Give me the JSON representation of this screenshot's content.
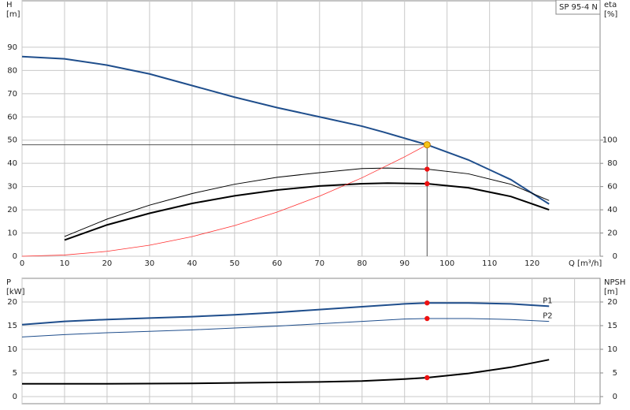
{
  "chart_data": [
    {
      "type": "line",
      "title": "SP 95-4 N",
      "ylabel": "H",
      "yunit": "[m]",
      "y2label": "eta",
      "y2unit": "[%]",
      "xlabel": "Q [m³/h]",
      "xlim": [
        0,
        136
      ],
      "xticks": [
        0,
        10,
        20,
        30,
        40,
        50,
        60,
        70,
        80,
        90,
        100,
        110,
        120
      ],
      "ylim": [
        0,
        110
      ],
      "yticks": [
        0,
        10,
        20,
        30,
        40,
        50,
        60,
        70,
        80,
        90
      ],
      "y2lim": [
        0,
        220
      ],
      "y2ticks": [
        0,
        20,
        40,
        60,
        80,
        100
      ],
      "grid": true,
      "series": [
        {
          "color": "#1f4e8c",
          "width": 2,
          "x": [
            0,
            10,
            20,
            30,
            40,
            50,
            60,
            70,
            80,
            85,
            95.3,
            105,
            115,
            124
          ],
          "values": [
            86,
            85,
            82.3,
            78.5,
            73.5,
            68.5,
            64,
            60,
            56,
            53.5,
            48,
            41.5,
            33,
            22.5
          ]
        },
        {
          "color": "#000000",
          "width": 1,
          "axis": "y2",
          "x": [
            10,
            20,
            30,
            40,
            50,
            60,
            70,
            80,
            86,
            95.3,
            105,
            115,
            124
          ],
          "values": [
            17,
            32,
            44,
            54,
            62,
            68,
            72,
            75.5,
            76,
            75,
            71,
            62,
            48
          ]
        },
        {
          "color": "#000000",
          "width": 2,
          "axis": "y2",
          "x": [
            10,
            20,
            30,
            40,
            50,
            60,
            70,
            80,
            86,
            95.3,
            105,
            115,
            124
          ],
          "values": [
            14,
            27,
            37,
            45.5,
            52,
            57,
            60.5,
            62.5,
            63,
            62.5,
            59,
            51.5,
            40
          ]
        },
        {
          "color": "#ff3030",
          "width": 0.8,
          "x": [
            0,
            10,
            20,
            30,
            40,
            50,
            60,
            70,
            80,
            90,
            95.3
          ],
          "values": [
            0,
            0.53,
            2.11,
            4.76,
            8.46,
            13.2,
            19,
            25.9,
            33.8,
            42.8,
            48
          ]
        }
      ],
      "markers": [
        {
          "x": 95.3,
          "y": 48,
          "color": "#f5c518",
          "guide": true
        },
        {
          "x": 95.3,
          "y": 75,
          "color": "#ee1111",
          "axis": "y2"
        },
        {
          "x": 95.3,
          "y": 62.5,
          "color": "#ee1111",
          "axis": "y2"
        }
      ]
    },
    {
      "type": "line",
      "ylabel": "P",
      "yunit": "[kW]",
      "y2label": "NPSH",
      "y2unit": "[m]",
      "xlim": [
        0,
        136
      ],
      "xticks": [
        0,
        10,
        20,
        30,
        40,
        50,
        60,
        70,
        80,
        90,
        100,
        110,
        120,
        130
      ],
      "ylim": [
        -1.5,
        25
      ],
      "yticks": [
        0,
        5,
        10,
        15,
        20
      ],
      "y2lim": [
        -1.5,
        25
      ],
      "y2ticks": [
        0,
        5,
        10,
        15,
        20
      ],
      "grid": true,
      "series": [
        {
          "name": "P1",
          "color": "#1f4e8c",
          "width": 2,
          "x": [
            0,
            10,
            20,
            30,
            40,
            50,
            60,
            70,
            80,
            90,
            95.3,
            105,
            115,
            124
          ],
          "values": [
            15.2,
            15.9,
            16.3,
            16.6,
            16.9,
            17.3,
            17.8,
            18.4,
            19,
            19.6,
            19.8,
            19.8,
            19.6,
            19.1
          ]
        },
        {
          "name": "P2",
          "color": "#1f4e8c",
          "width": 1,
          "x": [
            0,
            10,
            20,
            30,
            40,
            50,
            60,
            70,
            80,
            90,
            95.3,
            105,
            115,
            124
          ],
          "values": [
            12.6,
            13.1,
            13.5,
            13.8,
            14.1,
            14.5,
            14.9,
            15.4,
            15.9,
            16.4,
            16.5,
            16.5,
            16.3,
            15.9
          ]
        },
        {
          "color": "#000000",
          "width": 2,
          "axis": "y2",
          "x": [
            0,
            10,
            20,
            30,
            40,
            50,
            60,
            70,
            80,
            90,
            95.3,
            105,
            115,
            124
          ],
          "values": [
            2.7,
            2.7,
            2.7,
            2.75,
            2.8,
            2.9,
            3,
            3.1,
            3.3,
            3.7,
            4,
            4.9,
            6.2,
            7.8
          ]
        }
      ],
      "markers": [
        {
          "x": 95.3,
          "y": 19.8,
          "color": "#ee1111"
        },
        {
          "x": 95.3,
          "y": 16.5,
          "color": "#ee1111"
        },
        {
          "x": 95.3,
          "y": 4,
          "color": "#ee1111",
          "axis": "y2"
        }
      ]
    }
  ]
}
